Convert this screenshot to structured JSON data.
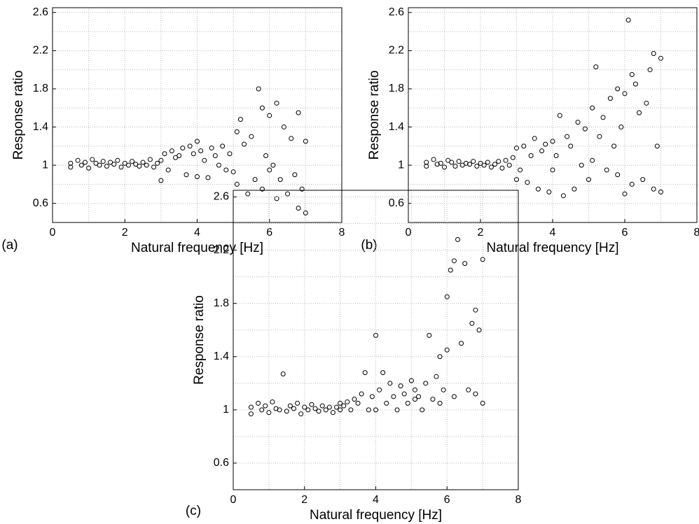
{
  "chart_data": [
    {
      "type": "scatter",
      "panel_label": "(a)",
      "xlabel": "Natural frequency [Hz]",
      "ylabel": "Response ratio",
      "marker_color": "#000000",
      "grid": true,
      "xlim": [
        0,
        8
      ],
      "ylim": [
        0.4,
        2.65
      ],
      "xticks": [
        0,
        2,
        4,
        6,
        8
      ],
      "yticks": [
        0.6,
        1,
        1.4,
        1.8,
        2.2,
        2.6
      ],
      "xminor": [
        1,
        3,
        5,
        7
      ],
      "yminor": [
        0.8,
        1.2,
        1.6,
        2,
        2.4
      ],
      "x": [
        0.5,
        0.5,
        0.7,
        0.8,
        0.9,
        1.0,
        1.1,
        1.2,
        1.3,
        1.4,
        1.5,
        1.6,
        1.7,
        1.8,
        1.9,
        2.0,
        2.1,
        2.2,
        2.3,
        2.4,
        2.5,
        2.6,
        2.7,
        2.8,
        2.9,
        3.0,
        3.0,
        3.1,
        3.2,
        3.3,
        3.4,
        3.5,
        3.6,
        3.7,
        3.8,
        3.9,
        4.0,
        4.0,
        4.1,
        4.2,
        4.3,
        4.4,
        4.5,
        4.6,
        4.7,
        4.8,
        4.9,
        5.0,
        5.1,
        5.1,
        5.2,
        5.3,
        5.4,
        5.5,
        5.6,
        5.7,
        5.8,
        5.8,
        5.9,
        6.0,
        6.0,
        6.1,
        6.2,
        6.2,
        6.3,
        6.4,
        6.5,
        6.6,
        6.7,
        6.8,
        6.8,
        6.9,
        7.0,
        7.0
      ],
      "y": [
        1.02,
        0.98,
        1.05,
        1.0,
        1.03,
        0.97,
        1.06,
        1.02,
        1.0,
        1.04,
        0.99,
        1.03,
        1.01,
        1.05,
        0.98,
        1.02,
        1.0,
        1.04,
        1.01,
        0.99,
        1.03,
        1.0,
        1.06,
        0.98,
        1.02,
        0.84,
        1.05,
        1.12,
        0.95,
        1.15,
        1.08,
        1.1,
        1.18,
        0.9,
        1.2,
        1.12,
        1.25,
        0.88,
        1.15,
        1.05,
        0.87,
        1.18,
        1.1,
        1.0,
        1.2,
        0.95,
        1.12,
        0.93,
        1.35,
        0.8,
        1.48,
        1.22,
        0.7,
        1.3,
        0.85,
        1.8,
        1.6,
        0.75,
        1.1,
        0.95,
        1.52,
        1.0,
        1.65,
        0.65,
        0.85,
        1.4,
        0.7,
        1.28,
        0.9,
        0.55,
        1.55,
        0.75,
        0.5,
        1.25
      ]
    },
    {
      "type": "scatter",
      "panel_label": "(b)",
      "xlabel": "Natural frequency [Hz]",
      "ylabel": "Response ratio",
      "marker_color": "#000000",
      "grid": true,
      "xlim": [
        0,
        8
      ],
      "ylim": [
        0.4,
        2.65
      ],
      "xticks": [
        0,
        2,
        4,
        6,
        8
      ],
      "yticks": [
        0.6,
        1,
        1.4,
        1.8,
        2.2,
        2.6
      ],
      "xminor": [
        1,
        3,
        5,
        7
      ],
      "yminor": [
        0.8,
        1.2,
        1.6,
        2,
        2.4
      ],
      "x": [
        0.5,
        0.5,
        0.7,
        0.8,
        0.9,
        1.0,
        1.1,
        1.2,
        1.3,
        1.4,
        1.5,
        1.6,
        1.7,
        1.8,
        1.9,
        2.0,
        2.1,
        2.2,
        2.3,
        2.4,
        2.5,
        2.6,
        2.7,
        2.8,
        2.9,
        3.0,
        3.0,
        3.1,
        3.2,
        3.3,
        3.4,
        3.5,
        3.6,
        3.7,
        3.8,
        3.9,
        4.0,
        4.0,
        4.1,
        4.2,
        4.3,
        4.4,
        4.5,
        4.6,
        4.7,
        4.8,
        4.9,
        5.0,
        5.1,
        5.1,
        5.2,
        5.3,
        5.4,
        5.5,
        5.6,
        5.7,
        5.8,
        5.8,
        5.9,
        6.0,
        6.0,
        6.1,
        6.2,
        6.2,
        6.3,
        6.4,
        6.5,
        6.6,
        6.7,
        6.8,
        6.8,
        6.9,
        7.0,
        7.0
      ],
      "y": [
        1.03,
        0.99,
        1.06,
        1.01,
        1.02,
        0.98,
        1.05,
        1.03,
        0.99,
        1.04,
        1.0,
        1.02,
        1.01,
        1.04,
        0.99,
        1.02,
        1.0,
        1.03,
        0.98,
        1.01,
        1.04,
        0.97,
        1.05,
        1.0,
        1.08,
        0.85,
        1.18,
        0.95,
        1.2,
        0.82,
        1.1,
        1.28,
        0.75,
        1.15,
        1.22,
        0.72,
        1.25,
        0.95,
        1.1,
        1.52,
        0.68,
        1.3,
        1.2,
        0.75,
        1.45,
        1.0,
        1.38,
        0.85,
        1.6,
        1.05,
        2.03,
        1.3,
        1.5,
        0.95,
        1.7,
        1.2,
        1.8,
        0.9,
        1.4,
        1.75,
        0.7,
        2.52,
        1.95,
        0.8,
        1.85,
        1.55,
        0.85,
        1.65,
        2.0,
        0.75,
        2.17,
        1.2,
        2.12,
        0.72
      ]
    },
    {
      "type": "scatter",
      "panel_label": "(c)",
      "xlabel": "Natural frequency [Hz]",
      "ylabel": "Response ratio",
      "marker_color": "#000000",
      "grid": true,
      "xlim": [
        0,
        8
      ],
      "ylim": [
        0.4,
        2.65
      ],
      "xticks": [
        0,
        2,
        4,
        6,
        8
      ],
      "yticks": [
        0.6,
        1,
        1.4,
        1.8,
        2.2,
        2.6
      ],
      "xminor": [
        1,
        3,
        5,
        7
      ],
      "yminor": [
        0.8,
        1.2,
        1.6,
        2,
        2.4
      ],
      "x": [
        0.5,
        0.5,
        0.7,
        0.8,
        0.9,
        1.0,
        1.1,
        1.2,
        1.3,
        1.4,
        1.5,
        1.6,
        1.7,
        1.8,
        1.9,
        2.0,
        2.1,
        2.2,
        2.3,
        2.4,
        2.5,
        2.6,
        2.7,
        2.8,
        2.9,
        3.0,
        3.0,
        3.1,
        3.2,
        3.3,
        3.4,
        3.5,
        3.6,
        3.7,
        3.8,
        3.9,
        4.0,
        4.0,
        4.1,
        4.2,
        4.3,
        4.4,
        4.5,
        4.6,
        4.7,
        4.8,
        4.9,
        5.0,
        5.1,
        5.1,
        5.2,
        5.3,
        5.4,
        5.5,
        5.6,
        5.7,
        5.8,
        5.8,
        5.9,
        6.0,
        6.0,
        6.1,
        6.2,
        6.2,
        6.3,
        6.4,
        6.5,
        6.6,
        6.7,
        6.8,
        6.8,
        6.9,
        7.0,
        7.0
      ],
      "y": [
        1.02,
        0.97,
        1.05,
        1.0,
        1.03,
        0.98,
        1.06,
        1.01,
        1.0,
        1.27,
        0.99,
        1.03,
        1.01,
        1.05,
        0.97,
        1.02,
        1.0,
        1.04,
        1.01,
        0.99,
        1.03,
        1.0,
        1.02,
        0.98,
        1.02,
        1.0,
        1.05,
        1.03,
        1.06,
        1.0,
        1.08,
        1.05,
        1.12,
        1.28,
        1.0,
        1.1,
        1.56,
        1.0,
        1.15,
        1.28,
        1.05,
        1.2,
        1.1,
        1.0,
        1.18,
        1.12,
        1.05,
        1.22,
        1.08,
        1.15,
        1.1,
        1.0,
        1.2,
        1.56,
        1.08,
        1.25,
        1.4,
        1.05,
        1.15,
        1.45,
        1.85,
        2.05,
        1.1,
        2.12,
        2.28,
        1.5,
        2.1,
        1.15,
        1.65,
        1.75,
        1.12,
        1.6,
        2.13,
        1.05
      ]
    }
  ]
}
